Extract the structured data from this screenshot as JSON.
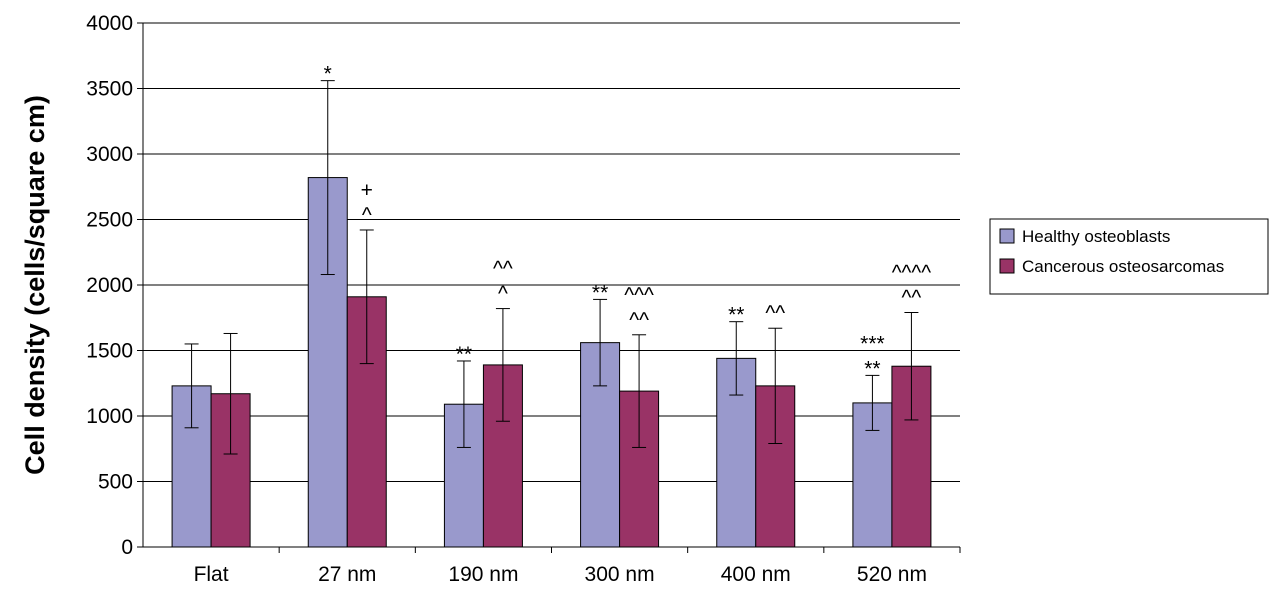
{
  "chart_data": {
    "type": "bar",
    "title": "",
    "xlabel": "",
    "ylabel": "Cell density (cells/square cm)",
    "ylim": [
      0,
      4000
    ],
    "yticks": [
      0,
      500,
      1000,
      1500,
      2000,
      2500,
      3000,
      3500,
      4000
    ],
    "grid": true,
    "legend_position": "right",
    "categories": [
      "Flat",
      "27 nm",
      "190 nm",
      "300 nm",
      "400 nm",
      "520 nm"
    ],
    "series": [
      {
        "name": "Healthy osteoblasts",
        "color": "#9999cc",
        "values": [
          1230,
          2820,
          1090,
          1560,
          1440,
          1100
        ],
        "errors": [
          320,
          740,
          330,
          330,
          280,
          210
        ],
        "annotations": [
          [],
          [
            "*"
          ],
          [
            "**"
          ],
          [
            "**"
          ],
          [
            "**"
          ],
          [
            "***",
            "**"
          ]
        ]
      },
      {
        "name": "Cancerous osteosarcomas",
        "color": "#993366",
        "values": [
          1170,
          1910,
          1390,
          1190,
          1230,
          1380
        ],
        "errors": [
          460,
          510,
          430,
          430,
          440,
          410
        ],
        "annotations": [
          [],
          [
            "+",
            "^"
          ],
          [
            "^^",
            "^"
          ],
          [
            "^^^",
            "^^"
          ],
          [
            "^^"
          ],
          [
            "^^^^",
            "^^"
          ]
        ]
      }
    ]
  }
}
